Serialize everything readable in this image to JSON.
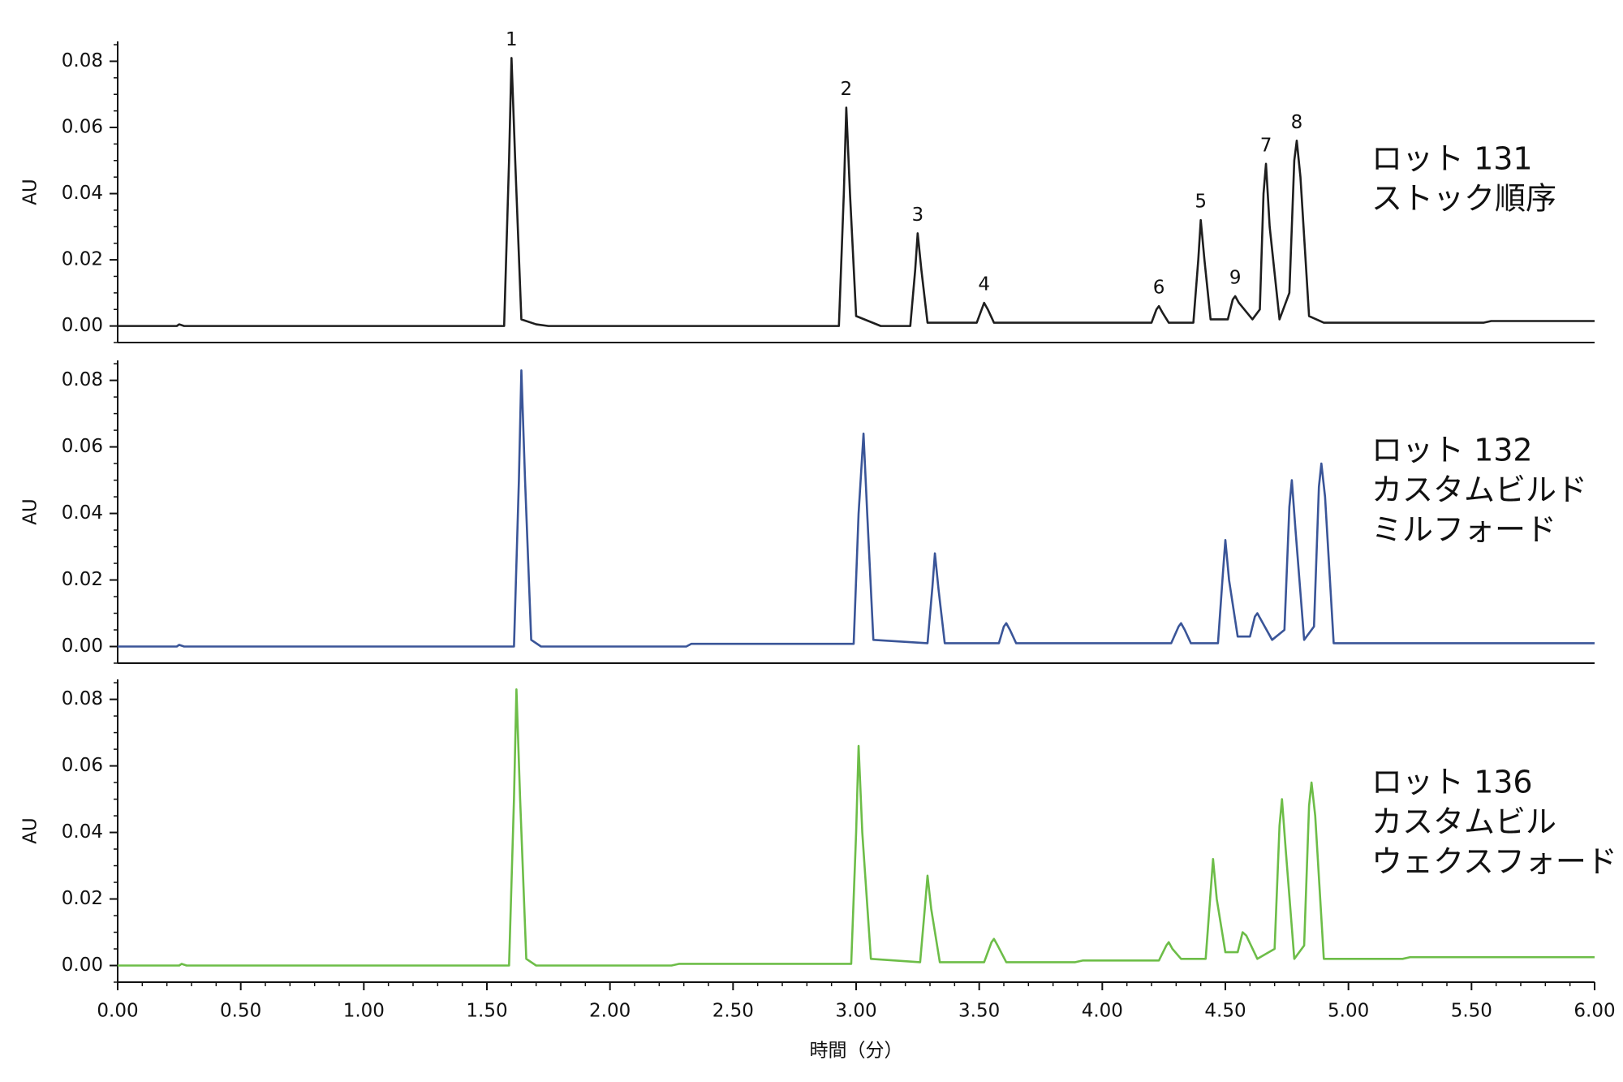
{
  "chart_data": [
    {
      "type": "line",
      "ylabel": "AU",
      "xlim": [
        0,
        6
      ],
      "ylim": [
        -0.005,
        0.086
      ],
      "yticks": [
        {
          "value": 0,
          "label": "0.00"
        },
        {
          "value": 0.02,
          "label": "0.02"
        },
        {
          "value": 0.04,
          "label": "0.04"
        },
        {
          "value": 0.06,
          "label": "0.06"
        },
        {
          "value": 0.08,
          "label": "0.08"
        }
      ],
      "y_minor_per_interval": 3,
      "series": [
        {
          "name": "ロット 131",
          "color": "#1e1e1e",
          "x": [
            0,
            0.24,
            0.25,
            0.27,
            1.57,
            1.59,
            1.6,
            1.615,
            1.64,
            1.7,
            1.75,
            2.93,
            2.95,
            2.96,
            2.975,
            3.0,
            3.1,
            3.22,
            3.24,
            3.25,
            3.265,
            3.29,
            3.49,
            3.51,
            3.52,
            3.535,
            3.56,
            4.2,
            4.22,
            4.23,
            4.245,
            4.27,
            4.37,
            4.39,
            4.4,
            4.415,
            4.44,
            4.51,
            4.53,
            4.54,
            4.555,
            4.61,
            4.64,
            4.655,
            4.665,
            4.68,
            4.72,
            4.76,
            4.78,
            4.79,
            4.805,
            4.84,
            4.9,
            5.55,
            5.58,
            6.0
          ],
          "values": [
            0,
            0,
            0.0005,
            0,
            0,
            0.05,
            0.081,
            0.05,
            0.002,
            0.0005,
            0,
            0,
            0.04,
            0.066,
            0.04,
            0.003,
            0,
            0,
            0.017,
            0.028,
            0.017,
            0.001,
            0.001,
            0.005,
            0.007,
            0.005,
            0.001,
            0.001,
            0.005,
            0.006,
            0.004,
            0.001,
            0.001,
            0.02,
            0.032,
            0.02,
            0.002,
            0.002,
            0.008,
            0.009,
            0.007,
            0.002,
            0.005,
            0.04,
            0.049,
            0.03,
            0.002,
            0.01,
            0.05,
            0.056,
            0.045,
            0.003,
            0.001,
            0.001,
            0.0015,
            0.0015
          ]
        }
      ],
      "legend_notes": [
        "ストック順序"
      ],
      "annotations": [
        {
          "text": "1",
          "x": 1.6,
          "y": 0.081
        },
        {
          "text": "2",
          "x": 2.96,
          "y": 0.066
        },
        {
          "text": "3",
          "x": 3.25,
          "y": 0.028
        },
        {
          "text": "4",
          "x": 3.52,
          "y": 0.007
        },
        {
          "text": "6",
          "x": 4.23,
          "y": 0.006
        },
        {
          "text": "5",
          "x": 4.4,
          "y": 0.032
        },
        {
          "text": "9",
          "x": 4.54,
          "y": 0.009
        },
        {
          "text": "7",
          "x": 4.665,
          "y": 0.049
        },
        {
          "text": "8",
          "x": 4.79,
          "y": 0.056
        }
      ]
    },
    {
      "type": "line",
      "ylabel": "AU",
      "xlim": [
        0,
        6
      ],
      "ylim": [
        -0.005,
        0.086
      ],
      "yticks": [
        {
          "value": 0,
          "label": "0.00"
        },
        {
          "value": 0.02,
          "label": "0.02"
        },
        {
          "value": 0.04,
          "label": "0.04"
        },
        {
          "value": 0.06,
          "label": "0.06"
        },
        {
          "value": 0.08,
          "label": "0.08"
        }
      ],
      "y_minor_per_interval": 3,
      "series": [
        {
          "name": "ロット 132",
          "color": "#3a5598",
          "x": [
            0,
            0.24,
            0.25,
            0.27,
            1.61,
            1.63,
            1.64,
            1.655,
            1.68,
            1.72,
            2.31,
            2.33,
            2.99,
            3.01,
            3.03,
            3.045,
            3.07,
            3.29,
            3.31,
            3.32,
            3.335,
            3.36,
            3.58,
            3.6,
            3.61,
            3.625,
            3.65,
            4.28,
            4.31,
            4.32,
            4.335,
            4.36,
            4.47,
            4.49,
            4.5,
            4.515,
            4.55,
            4.6,
            4.62,
            4.63,
            4.645,
            4.69,
            4.74,
            4.76,
            4.77,
            4.785,
            4.82,
            4.86,
            4.88,
            4.89,
            4.905,
            4.94,
            6.0
          ],
          "values": [
            0,
            0,
            0.0005,
            0,
            0,
            0.05,
            0.083,
            0.05,
            0.002,
            0,
            0,
            0.0008,
            0.0008,
            0.04,
            0.064,
            0.04,
            0.002,
            0.001,
            0.018,
            0.028,
            0.017,
            0.001,
            0.001,
            0.006,
            0.007,
            0.005,
            0.001,
            0.001,
            0.006,
            0.007,
            0.005,
            0.001,
            0.001,
            0.022,
            0.032,
            0.02,
            0.003,
            0.003,
            0.009,
            0.01,
            0.008,
            0.002,
            0.005,
            0.042,
            0.05,
            0.035,
            0.002,
            0.006,
            0.048,
            0.055,
            0.045,
            0.001,
            0.001
          ]
        }
      ],
      "legend_notes": [
        "カスタムビルド",
        "ミルフォード"
      ]
    },
    {
      "type": "line",
      "ylabel": "AU",
      "xlabel": "時間（分）",
      "xlim": [
        0,
        6
      ],
      "ylim": [
        -0.005,
        0.086
      ],
      "xticks": [
        {
          "value": 0,
          "label": "0.00"
        },
        {
          "value": 0.5,
          "label": "0.50"
        },
        {
          "value": 1,
          "label": "1.00"
        },
        {
          "value": 1.5,
          "label": "1.50"
        },
        {
          "value": 2,
          "label": "2.00"
        },
        {
          "value": 2.5,
          "label": "2.50"
        },
        {
          "value": 3,
          "label": "3.00"
        },
        {
          "value": 3.5,
          "label": "3.50"
        },
        {
          "value": 4,
          "label": "4.00"
        },
        {
          "value": 4.5,
          "label": "4.50"
        },
        {
          "value": 5,
          "label": "5.00"
        },
        {
          "value": 5.5,
          "label": "5.50"
        },
        {
          "value": 6,
          "label": "6.00"
        }
      ],
      "x_minor_per_interval": 4,
      "yticks": [
        {
          "value": 0,
          "label": "0.00"
        },
        {
          "value": 0.02,
          "label": "0.02"
        },
        {
          "value": 0.04,
          "label": "0.04"
        },
        {
          "value": 0.06,
          "label": "0.06"
        },
        {
          "value": 0.08,
          "label": "0.08"
        }
      ],
      "y_minor_per_interval": 3,
      "series": [
        {
          "name": "ロット 136",
          "color": "#6dbd48",
          "x": [
            0,
            0.25,
            0.26,
            0.28,
            1.59,
            1.61,
            1.62,
            1.635,
            1.66,
            1.7,
            2.25,
            2.28,
            2.98,
            3.0,
            3.01,
            3.025,
            3.06,
            3.26,
            3.28,
            3.29,
            3.305,
            3.34,
            3.52,
            3.55,
            3.56,
            3.575,
            3.61,
            3.89,
            3.92,
            4.23,
            4.26,
            4.27,
            4.285,
            4.32,
            4.42,
            4.44,
            4.45,
            4.465,
            4.5,
            4.55,
            4.57,
            4.585,
            4.63,
            4.7,
            4.72,
            4.73,
            4.745,
            4.78,
            4.82,
            4.84,
            4.85,
            4.865,
            4.9,
            5.22,
            5.25,
            6.0
          ],
          "values": [
            0,
            0,
            0.0005,
            0,
            0,
            0.05,
            0.083,
            0.05,
            0.002,
            0,
            0,
            0.0005,
            0.0005,
            0.04,
            0.066,
            0.04,
            0.002,
            0.001,
            0.018,
            0.027,
            0.017,
            0.001,
            0.001,
            0.007,
            0.008,
            0.006,
            0.001,
            0.001,
            0.0015,
            0.0015,
            0.006,
            0.007,
            0.005,
            0.002,
            0.002,
            0.022,
            0.032,
            0.02,
            0.004,
            0.004,
            0.01,
            0.009,
            0.002,
            0.005,
            0.042,
            0.05,
            0.035,
            0.002,
            0.006,
            0.048,
            0.055,
            0.045,
            0.002,
            0.002,
            0.0025,
            0.0025
          ]
        }
      ],
      "legend_notes": [
        "カスタムビル",
        "ウェクスフォード"
      ]
    }
  ]
}
